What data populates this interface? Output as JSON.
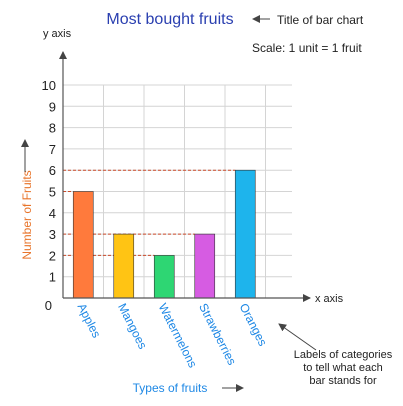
{
  "colors": {
    "title": "#2a3fb0",
    "axis_label_y": "#e8742a",
    "category_label": "#1e88e5",
    "x_title": "#1e88e5",
    "guide": "#cc4a2a",
    "grid": "#d4d4d4",
    "axis": "#555555",
    "text": "#222222"
  },
  "annotations": {
    "title_note": "Title of bar chart",
    "scale_note": "Scale: 1 unit = 1 fruit",
    "x_axis_note": "x axis",
    "y_axis_note": "y axis",
    "labels_note_lines": [
      "Labels of categories",
      "to tell what each",
      "bar stands for"
    ]
  },
  "chart_data": {
    "type": "bar",
    "title": "Most bought fruits",
    "xlabel": "Types of fruits",
    "ylabel": "Number of Fruits",
    "categories": [
      "Apples",
      "Mangoes",
      "Watermelons",
      "Strawberries",
      "Oranges"
    ],
    "values": [
      5,
      3,
      2,
      3,
      6
    ],
    "bar_colors": [
      "#ff7a3c",
      "#ffc414",
      "#2ed673",
      "#d65ce2",
      "#1eb4ec"
    ],
    "ylim": [
      0,
      10
    ],
    "yticks": [
      0,
      1,
      2,
      3,
      4,
      5,
      6,
      7,
      8,
      9,
      10
    ],
    "grid": true,
    "legend": "none"
  }
}
